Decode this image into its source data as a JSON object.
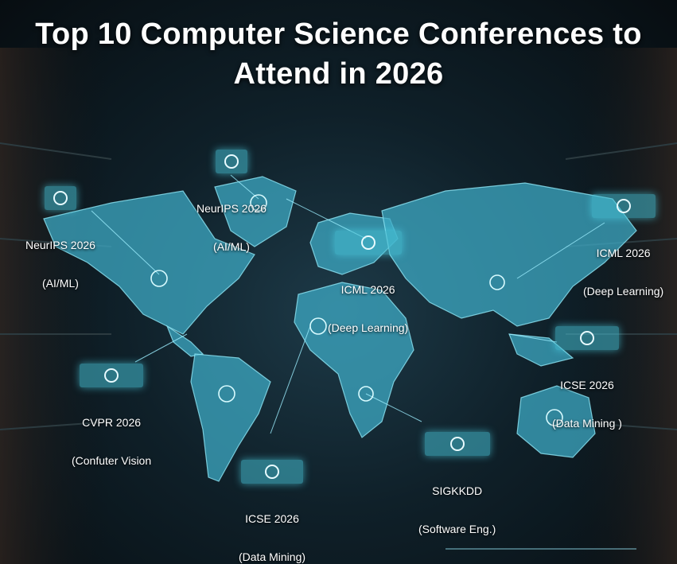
{
  "title": "Top 10 Computer Science Conferences to Attend in 2026",
  "labels": [
    {
      "name": "NeurIPS 2026",
      "field": "(AI/ML)"
    },
    {
      "name": "NeurIPS 2026",
      "field": "(AI/ML)"
    },
    {
      "name": "ICML 2026",
      "field": "(Deep Learning)"
    },
    {
      "name": "ICML 2026",
      "field": "(Deep Learning)"
    },
    {
      "name": "ICSE 2026",
      "field": "(Data Mining )"
    },
    {
      "name": "CVPR 2026",
      "field": "(Confuter Vision"
    },
    {
      "name": "ICSE 2026",
      "field": "(Data Mining)"
    },
    {
      "name": "SIGKKDD",
      "field": "(Software Eng.)"
    }
  ]
}
